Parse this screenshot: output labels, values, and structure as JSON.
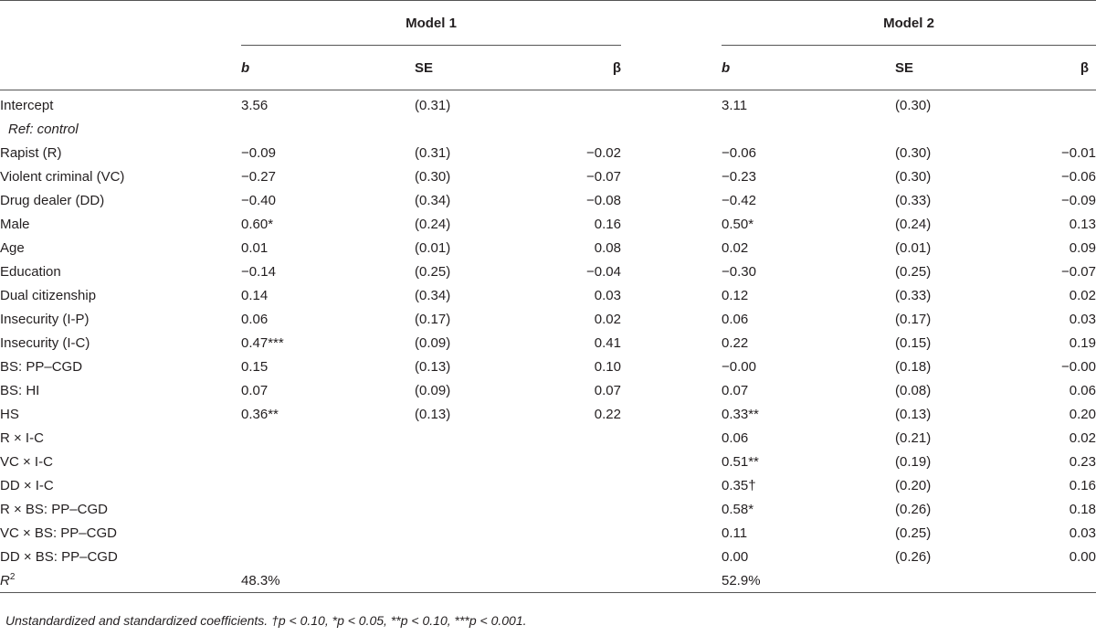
{
  "header": {
    "model1": "Model 1",
    "model2": "Model 2",
    "col_b": "b",
    "col_se": "SE",
    "col_beta": "β"
  },
  "rows": [
    {
      "label": "Intercept",
      "b1": "3.56",
      "se1": "(0.31)",
      "beta1": "",
      "b2": "3.11",
      "se2": "(0.30)",
      "beta2": ""
    },
    {
      "label": "Ref: control",
      "b1": "",
      "se1": "",
      "beta1": "",
      "b2": "",
      "se2": "",
      "beta2": ""
    },
    {
      "label": "Rapist (R)",
      "b1": "−0.09",
      "se1": "(0.31)",
      "beta1": "−0.02",
      "b2": "−0.06",
      "se2": "(0.30)",
      "beta2": "−0.01"
    },
    {
      "label": "Violent criminal (VC)",
      "b1": "−0.27",
      "se1": "(0.30)",
      "beta1": "−0.07",
      "b2": "−0.23",
      "se2": "(0.30)",
      "beta2": "−0.06"
    },
    {
      "label": "Drug dealer (DD)",
      "b1": "−0.40",
      "se1": "(0.34)",
      "beta1": "−0.08",
      "b2": "−0.42",
      "se2": "(0.33)",
      "beta2": "−0.09"
    },
    {
      "label": "Male",
      "b1": "0.60*",
      "se1": "(0.24)",
      "beta1": "0.16",
      "b2": "0.50*",
      "se2": "(0.24)",
      "beta2": "0.13"
    },
    {
      "label": "Age",
      "b1": "0.01",
      "se1": "(0.01)",
      "beta1": "0.08",
      "b2": "0.02",
      "se2": "(0.01)",
      "beta2": "0.09"
    },
    {
      "label": "Education",
      "b1": "−0.14",
      "se1": "(0.25)",
      "beta1": "−0.04",
      "b2": "−0.30",
      "se2": "(0.25)",
      "beta2": "−0.07"
    },
    {
      "label": "Dual citizenship",
      "b1": "0.14",
      "se1": "(0.34)",
      "beta1": "0.03",
      "b2": "0.12",
      "se2": "(0.33)",
      "beta2": "0.02"
    },
    {
      "label": "Insecurity (I-P)",
      "b1": "0.06",
      "se1": "(0.17)",
      "beta1": "0.02",
      "b2": "0.06",
      "se2": "(0.17)",
      "beta2": "0.03"
    },
    {
      "label": "Insecurity (I-C)",
      "b1": "0.47***",
      "se1": "(0.09)",
      "beta1": "0.41",
      "b2": "0.22",
      "se2": "(0.15)",
      "beta2": "0.19"
    },
    {
      "label": "BS: PP–CGD",
      "b1": "0.15",
      "se1": "(0.13)",
      "beta1": "0.10",
      "b2": "−0.00",
      "se2": "(0.18)",
      "beta2": "−0.00"
    },
    {
      "label": "BS: HI",
      "b1": "0.07",
      "se1": "(0.09)",
      "beta1": "0.07",
      "b2": "0.07",
      "se2": "(0.08)",
      "beta2": "0.06"
    },
    {
      "label": "HS",
      "b1": "0.36**",
      "se1": "(0.13)",
      "beta1": "0.22",
      "b2": "0.33**",
      "se2": "(0.13)",
      "beta2": "0.20"
    },
    {
      "label": "R × I-C",
      "b1": "",
      "se1": "",
      "beta1": "",
      "b2": "0.06",
      "se2": "(0.21)",
      "beta2": "0.02"
    },
    {
      "label": "VC × I-C",
      "b1": "",
      "se1": "",
      "beta1": "",
      "b2": "0.51**",
      "se2": "(0.19)",
      "beta2": "0.23"
    },
    {
      "label": "DD × I-C",
      "b1": "",
      "se1": "",
      "beta1": "",
      "b2": "0.35†",
      "se2": "(0.20)",
      "beta2": "0.16"
    },
    {
      "label": "R × BS: PP–CGD",
      "b1": "",
      "se1": "",
      "beta1": "",
      "b2": "0.58*",
      "se2": "(0.26)",
      "beta2": "0.18"
    },
    {
      "label": "VC × BS: PP–CGD",
      "b1": "",
      "se1": "",
      "beta1": "",
      "b2": "0.11",
      "se2": "(0.25)",
      "beta2": "0.03"
    },
    {
      "label": "DD × BS: PP–CGD",
      "b1": "",
      "se1": "",
      "beta1": "",
      "b2": "0.00",
      "se2": "(0.26)",
      "beta2": "0.00"
    }
  ],
  "r2": {
    "label_base": "R",
    "label_sup": "2",
    "model1": "48.3%",
    "model2": "52.9%"
  },
  "note": "Unstandardized and standardized coefficients. †p < 0.10, *p < 0.05, **p < 0.10, ***p < 0.001."
}
